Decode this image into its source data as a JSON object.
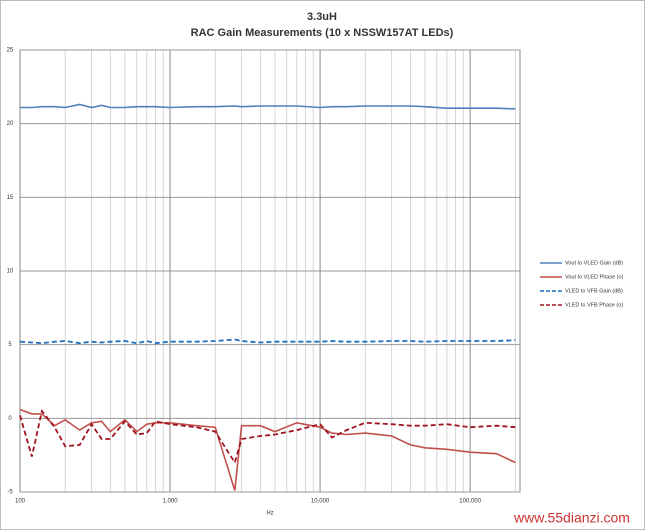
{
  "chart_data": {
    "type": "line",
    "title": "3.3uH",
    "subtitle": "RAC Gain Measurements (10 x NSSW157AT LEDs)",
    "x_label": "Hz",
    "x": [
      100,
      120,
      140,
      170,
      200,
      250,
      300,
      350,
      400,
      500,
      600,
      700,
      800,
      1000,
      1500,
      2000,
      2700,
      3000,
      4000,
      5000,
      7000,
      10000,
      12000,
      15000,
      20000,
      30000,
      40000,
      50000,
      70000,
      100000,
      150000,
      200000
    ],
    "series": [
      {
        "name": "Vout to VLED Gain (dB)",
        "color": "#4f81bd",
        "dash": false,
        "values": [
          21.1,
          21.1,
          21.15,
          21.15,
          21.1,
          21.3,
          21.1,
          21.25,
          21.1,
          21.1,
          21.15,
          21.15,
          21.15,
          21.1,
          21.15,
          21.15,
          21.2,
          21.15,
          21.2,
          21.2,
          21.2,
          21.1,
          21.15,
          21.15,
          21.2,
          21.2,
          21.2,
          21.15,
          21.05,
          21.05,
          21.05,
          21.0
        ]
      },
      {
        "name": "Vout to VLED Phase (o)",
        "color": "#c0504d",
        "dash": false,
        "values": [
          0.6,
          0.3,
          0.3,
          -0.5,
          -0.1,
          -0.8,
          -0.3,
          -0.2,
          -0.9,
          -0.1,
          -0.9,
          -0.4,
          -0.3,
          -0.3,
          -0.5,
          -0.6,
          -4.9,
          -0.5,
          -0.5,
          -0.9,
          -0.3,
          -0.6,
          -1.0,
          -1.1,
          -1.0,
          -1.2,
          -1.8,
          -2.0,
          -2.1,
          -2.3,
          -2.4,
          -3.0
        ]
      },
      {
        "name": "VLED to VFB Gain (dB)",
        "color": "#1f6fc0",
        "dash": true,
        "values": [
          5.2,
          5.15,
          5.1,
          5.2,
          5.25,
          5.1,
          5.2,
          5.15,
          5.2,
          5.25,
          5.1,
          5.25,
          5.1,
          5.2,
          5.2,
          5.25,
          5.35,
          5.25,
          5.15,
          5.2,
          5.2,
          5.2,
          5.25,
          5.2,
          5.2,
          5.25,
          5.25,
          5.2,
          5.25,
          5.25,
          5.25,
          5.3
        ]
      },
      {
        "name": "VLED to VFB Phase (o)",
        "color": "#a01420",
        "dash": true,
        "values": [
          0.2,
          -2.6,
          0.5,
          -0.6,
          -1.9,
          -1.8,
          -0.4,
          -1.4,
          -1.4,
          -0.2,
          -1.1,
          -1.0,
          -0.2,
          -0.4,
          -0.6,
          -0.9,
          -3.0,
          -1.4,
          -1.2,
          -1.1,
          -0.8,
          -0.4,
          -1.3,
          -0.8,
          -0.3,
          -0.4,
          -0.5,
          -0.5,
          -0.4,
          -0.6,
          -0.5,
          -0.6
        ]
      }
    ],
    "xlim": [
      100,
      215000
    ],
    "log_x": true,
    "xticks": [
      100,
      {
        "value": 1000,
        "label": "1,000"
      },
      {
        "value": 10000,
        "label": "10,000"
      },
      {
        "value": 100000,
        "label": "100,000"
      }
    ],
    "ylim": [
      -5,
      25
    ],
    "yticks": [
      -5,
      0,
      5,
      10,
      15,
      20,
      25
    ],
    "grid": true,
    "minor_grid": true,
    "legend": "right",
    "watermark": "www.55dianzi.com"
  }
}
